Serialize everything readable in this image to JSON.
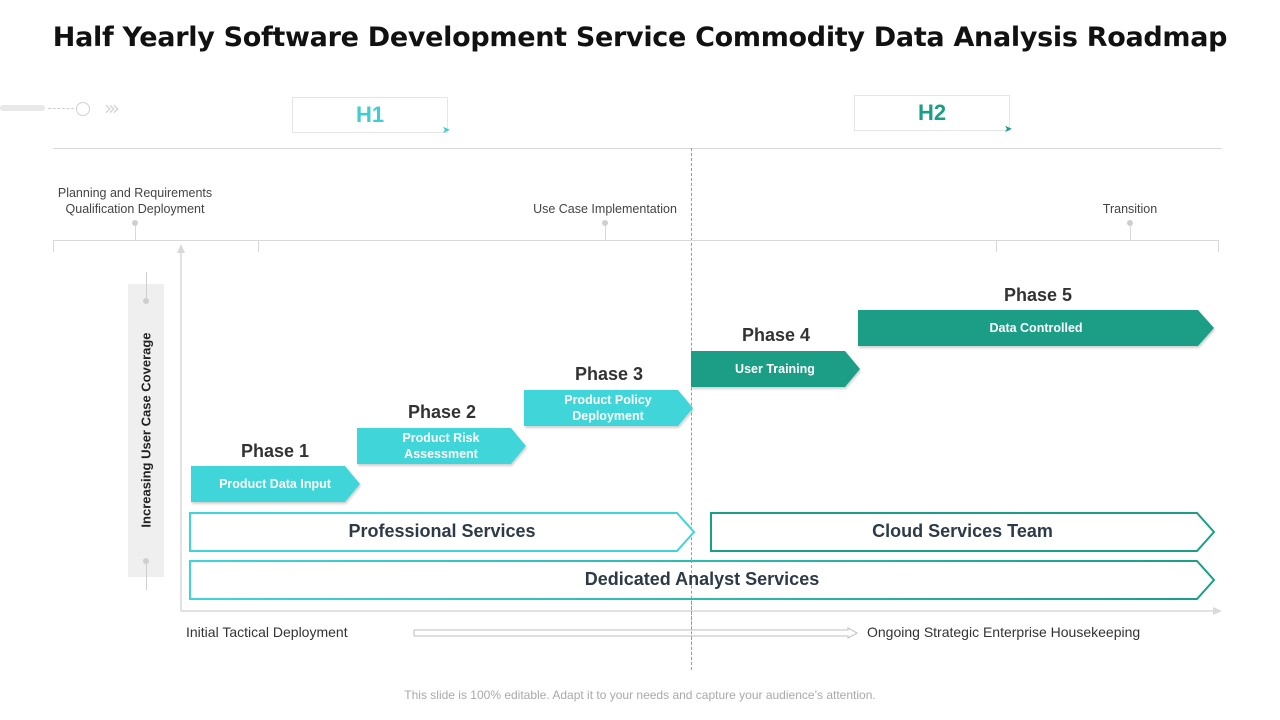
{
  "title": "Half Yearly Software Development Service Commodity Data Analysis Roadmap",
  "halves": [
    {
      "label": "H1",
      "color": "#3ecdd0"
    },
    {
      "label": "H2",
      "color": "#1a9e86"
    }
  ],
  "milestones": [
    "Planning and Requirements\nQualification Deployment",
    "Use Case Implementation",
    "Transition"
  ],
  "y_axis_label": "Increasing User Case Coverage",
  "phases": [
    {
      "title": "Phase 1",
      "text": "Product Data Input",
      "color": "#3fd5d8"
    },
    {
      "title": "Phase 2",
      "text": "Product Risk\nAssessment",
      "color": "#3fd5d8"
    },
    {
      "title": "Phase 3",
      "text": "Product Policy\nDeployment",
      "color": "#3fd5d8"
    },
    {
      "title": "Phase 4",
      "text": "User Training",
      "color": "#1a9e86"
    },
    {
      "title": "Phase 5",
      "text": "Data Controlled",
      "color": "#1a9e86"
    }
  ],
  "bands": {
    "professional": "Professional Services",
    "cloud": "Cloud Services Team",
    "dedicated": "Dedicated Analyst Services"
  },
  "bottom": {
    "left": "Initial Tactical Deployment",
    "right": "Ongoing Strategic Enterprise Housekeeping"
  },
  "footer": "This slide is 100% editable. Adapt it to your needs and capture your audience’s attention.",
  "colors": {
    "light_teal": "#3fd5d8",
    "dark_teal": "#1a9e86",
    "axis_gray": "#d9d9d9"
  }
}
